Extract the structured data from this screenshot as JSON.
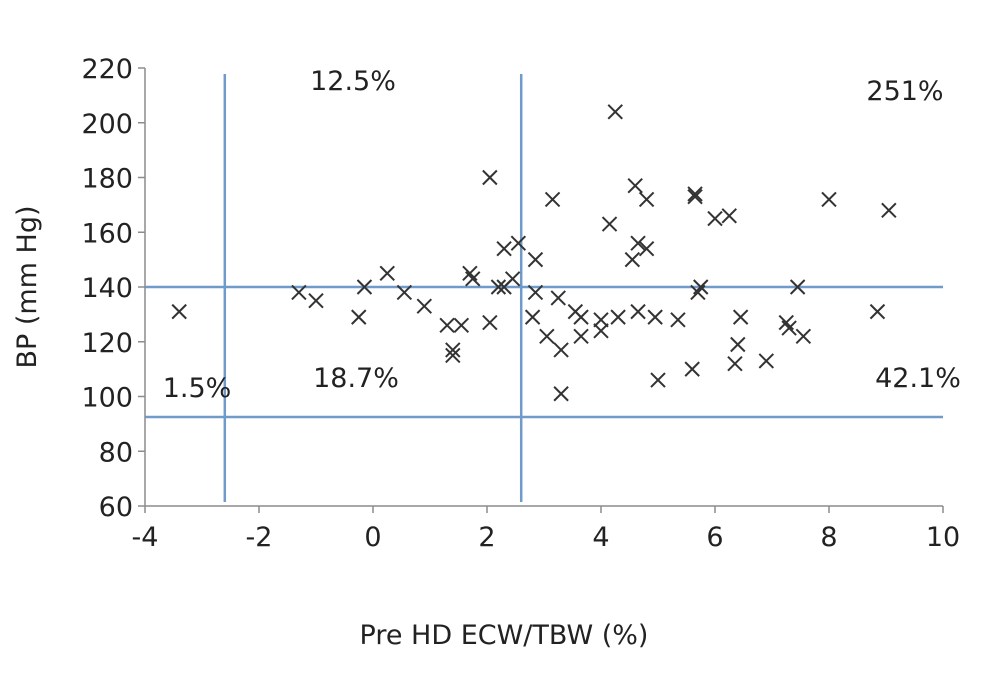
{
  "chart_data": {
    "type": "scatter",
    "title": "",
    "xlabel": "Pre HD ECW/TBW (%)",
    "ylabel": "BP (mm Hg)",
    "xlim": [
      -4,
      10
    ],
    "ylim": [
      60,
      220
    ],
    "x_ticks": [
      -4,
      -2,
      0,
      2,
      4,
      6,
      8,
      10
    ],
    "y_ticks": [
      60,
      80,
      100,
      120,
      140,
      160,
      180,
      200,
      220
    ],
    "grid": false,
    "marker": "x",
    "colors": {
      "marker": "#333333",
      "reference_lines": "#6f9ac9",
      "axis": "#8c8c8c"
    },
    "reference_lines": {
      "vertical_x": [
        -2.6,
        2.6
      ],
      "horizontal_y": [
        140,
        92.5
      ]
    },
    "annotations": [
      "12.5%",
      "251%",
      "1.5%",
      "18.7%",
      "42.1%"
    ],
    "points": [
      {
        "x": -3.4,
        "y": 131
      },
      {
        "x": -1.3,
        "y": 138
      },
      {
        "x": -1.0,
        "y": 135
      },
      {
        "x": -0.25,
        "y": 129
      },
      {
        "x": -0.15,
        "y": 140
      },
      {
        "x": 0.25,
        "y": 145
      },
      {
        "x": 0.55,
        "y": 138
      },
      {
        "x": 0.9,
        "y": 133
      },
      {
        "x": 1.3,
        "y": 126
      },
      {
        "x": 1.4,
        "y": 117
      },
      {
        "x": 1.4,
        "y": 115
      },
      {
        "x": 1.55,
        "y": 126
      },
      {
        "x": 1.7,
        "y": 145
      },
      {
        "x": 1.75,
        "y": 143
      },
      {
        "x": 2.05,
        "y": 180
      },
      {
        "x": 2.05,
        "y": 127
      },
      {
        "x": 2.2,
        "y": 140
      },
      {
        "x": 2.3,
        "y": 140
      },
      {
        "x": 2.3,
        "y": 154
      },
      {
        "x": 2.45,
        "y": 143
      },
      {
        "x": 2.55,
        "y": 156
      },
      {
        "x": 2.85,
        "y": 150
      },
      {
        "x": 2.85,
        "y": 138
      },
      {
        "x": 2.8,
        "y": 129
      },
      {
        "x": 3.05,
        "y": 122
      },
      {
        "x": 3.15,
        "y": 172
      },
      {
        "x": 3.25,
        "y": 136
      },
      {
        "x": 3.3,
        "y": 117
      },
      {
        "x": 3.3,
        "y": 101
      },
      {
        "x": 3.55,
        "y": 131
      },
      {
        "x": 3.65,
        "y": 129
      },
      {
        "x": 3.65,
        "y": 122
      },
      {
        "x": 4.0,
        "y": 128
      },
      {
        "x": 4.0,
        "y": 124
      },
      {
        "x": 4.15,
        "y": 163
      },
      {
        "x": 4.25,
        "y": 204
      },
      {
        "x": 4.3,
        "y": 129
      },
      {
        "x": 4.55,
        "y": 150
      },
      {
        "x": 4.6,
        "y": 177
      },
      {
        "x": 4.65,
        "y": 156
      },
      {
        "x": 4.65,
        "y": 131
      },
      {
        "x": 4.8,
        "y": 172
      },
      {
        "x": 4.8,
        "y": 154
      },
      {
        "x": 4.95,
        "y": 129
      },
      {
        "x": 5.0,
        "y": 106
      },
      {
        "x": 5.35,
        "y": 128
      },
      {
        "x": 5.6,
        "y": 110
      },
      {
        "x": 5.65,
        "y": 174
      },
      {
        "x": 5.65,
        "y": 173
      },
      {
        "x": 5.7,
        "y": 138
      },
      {
        "x": 5.75,
        "y": 140
      },
      {
        "x": 6.0,
        "y": 165
      },
      {
        "x": 6.25,
        "y": 166
      },
      {
        "x": 6.35,
        "y": 112
      },
      {
        "x": 6.4,
        "y": 119
      },
      {
        "x": 6.45,
        "y": 129
      },
      {
        "x": 6.9,
        "y": 113
      },
      {
        "x": 7.25,
        "y": 127
      },
      {
        "x": 7.3,
        "y": 125
      },
      {
        "x": 7.45,
        "y": 140
      },
      {
        "x": 7.55,
        "y": 122
      },
      {
        "x": 8.0,
        "y": 172
      },
      {
        "x": 8.85,
        "y": 131
      },
      {
        "x": 9.05,
        "y": 168
      }
    ]
  }
}
